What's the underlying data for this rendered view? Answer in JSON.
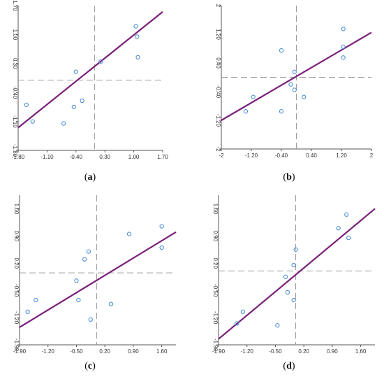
{
  "chart_data": [
    {
      "type": "scatter",
      "panel_label": "(a)",
      "xlim": [
        -1.8,
        1.7
      ],
      "ylim": [
        -1.8,
        1.7
      ],
      "x_ticks": [
        "-1.80",
        "-1.10",
        "-0.40",
        "0.30",
        "1.00",
        "1.70"
      ],
      "x_tick_values": [
        -1.8,
        -1.1,
        -0.4,
        0.3,
        1.0,
        1.7
      ],
      "y_ticks": [
        "-1.80",
        "-1.10",
        "-0.40",
        "0.30",
        "1.00",
        "1.70"
      ],
      "y_tick_values": [
        -1.8,
        -1.1,
        -0.4,
        0.3,
        1.0,
        1.7
      ],
      "x": [
        -1.6,
        -1.45,
        -0.7,
        -0.45,
        -0.4,
        -0.25,
        0.2,
        1.05,
        1.08,
        1.1
      ],
      "y": [
        -0.7,
        -1.1,
        -1.15,
        -0.75,
        0.1,
        -0.6,
        0.35,
        1.2,
        0.95,
        0.45
      ],
      "fit_line": {
        "x": [
          -1.8,
          1.7
        ],
        "y": [
          -1.25,
          1.55
        ]
      },
      "ref_lines": {
        "vertical_x": 0.05,
        "horizontal_y": -0.1
      },
      "colors": {
        "points": "#4a8fd6",
        "fit": "#7a1f7a",
        "ref": "#999999",
        "axis": "#555555"
      }
    },
    {
      "type": "scatter",
      "panel_label": "(b)",
      "xlim": [
        -2,
        2
      ],
      "ylim": [
        -2,
        2
      ],
      "x_ticks": [
        "-2",
        "-1.20",
        "-0.40",
        "0.40",
        "1.20",
        "2"
      ],
      "x_tick_values": [
        -2,
        -1.2,
        -0.4,
        0.4,
        1.2,
        2
      ],
      "y_ticks": [
        "-2",
        "-1.20",
        "-0.40",
        "0.40",
        "1.20",
        "2"
      ],
      "y_tick_values": [
        -2,
        -1.2,
        -0.4,
        0.4,
        1.2,
        2
      ],
      "x": [
        -1.35,
        -1.15,
        -0.4,
        -0.4,
        -0.15,
        -0.05,
        -0.05,
        0.2,
        1.25,
        1.25,
        1.25
      ],
      "y": [
        -0.95,
        -0.55,
        0.75,
        -0.95,
        -0.2,
        0.15,
        -0.35,
        -0.55,
        1.35,
        0.85,
        0.55
      ],
      "fit_line": {
        "x": [
          -2,
          2
        ],
        "y": [
          -1.2,
          1.25
        ]
      },
      "ref_lines": {
        "vertical_x": 0.0,
        "horizontal_y": 0.0
      },
      "colors": {
        "points": "#4a8fd6",
        "fit": "#7a1f7a",
        "ref": "#999999",
        "axis": "#555555"
      }
    },
    {
      "type": "scatter",
      "panel_label": "(c)",
      "xlim": [
        -1.9,
        1.95
      ],
      "ylim": [
        -1.9,
        1.95
      ],
      "x_ticks": [
        "-1.90",
        "-1.20",
        "-0.50",
        "0.20",
        "0.90",
        "1.60"
      ],
      "x_tick_values": [
        -1.9,
        -1.2,
        -0.5,
        0.2,
        0.9,
        1.6
      ],
      "y_ticks": [
        "-1.90",
        "-1.20",
        "-0.50",
        "0.20",
        "0.90",
        "1.60"
      ],
      "y_tick_values": [
        -1.9,
        -1.2,
        -0.5,
        0.2,
        0.9,
        1.6
      ],
      "x": [
        -1.7,
        -1.5,
        -0.5,
        -0.45,
        -0.3,
        -0.2,
        -0.15,
        0.35,
        0.8,
        1.6,
        1.6
      ],
      "y": [
        -1.05,
        -0.75,
        -0.25,
        -0.75,
        0.3,
        0.5,
        -1.25,
        -0.85,
        0.95,
        1.15,
        0.6
      ],
      "fit_line": {
        "x": [
          -1.9,
          1.95
        ],
        "y": [
          -1.45,
          1.0
        ]
      },
      "ref_lines": {
        "vertical_x": 0.0,
        "horizontal_y": -0.05
      },
      "colors": {
        "points": "#4a8fd6",
        "fit": "#7a1f7a",
        "ref": "#999999",
        "axis": "#555555"
      }
    },
    {
      "type": "scatter",
      "panel_label": "(d)",
      "xlim": [
        -1.9,
        1.95
      ],
      "ylim": [
        -1.9,
        1.95
      ],
      "x_ticks": [
        "-1.90",
        "-1.20",
        "-0.50",
        "0.20",
        "0.90",
        "1.60"
      ],
      "x_tick_values": [
        -1.9,
        -1.2,
        -0.5,
        0.2,
        0.9,
        1.6
      ],
      "y_ticks": [
        "-1.90",
        "-1.20",
        "-0.50",
        "0.20",
        "0.90",
        "1.60"
      ],
      "y_tick_values": [
        -1.9,
        -1.2,
        -0.5,
        0.2,
        0.9,
        1.6
      ],
      "x": [
        -1.45,
        -1.3,
        -0.45,
        -0.25,
        -0.2,
        -0.05,
        -0.05,
        0.0,
        1.05,
        1.25,
        1.3
      ],
      "y": [
        -1.35,
        -1.05,
        -1.4,
        -0.15,
        -0.55,
        0.15,
        -0.75,
        0.55,
        1.1,
        1.45,
        0.85
      ],
      "fit_line": {
        "x": [
          -1.9,
          1.95
        ],
        "y": [
          -1.75,
          1.6
        ]
      },
      "ref_lines": {
        "vertical_x": 0.0,
        "horizontal_y": 0.0
      },
      "colors": {
        "points": "#4a8fd6",
        "fit": "#7a1f7a",
        "ref": "#999999",
        "axis": "#555555"
      }
    }
  ]
}
